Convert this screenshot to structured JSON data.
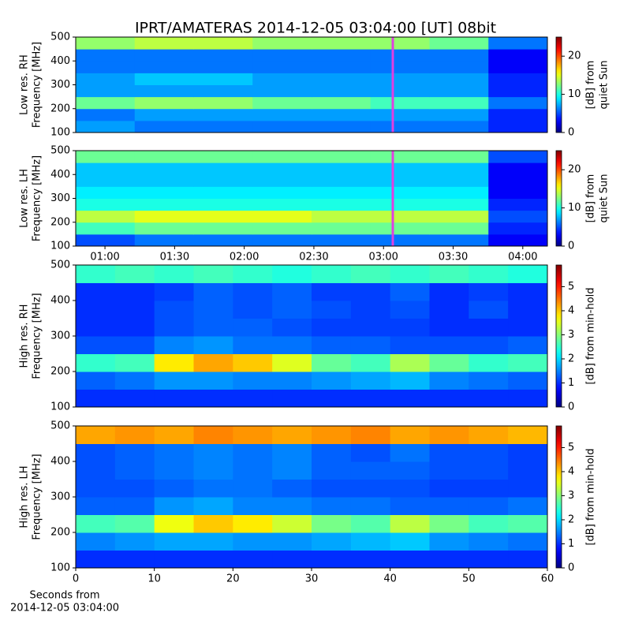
{
  "title": "IPRT/AMATERAS 2014-12-05 03:04:00 [UT]   08bit",
  "chart_data": [
    {
      "type": "heatmap",
      "ylabel": [
        "Low res. RH",
        "Frequency [MHz]"
      ],
      "colormap": "jet",
      "xlim": [
        47.4,
        250.6
      ],
      "ylim": [
        100,
        500
      ],
      "yticks": [
        100,
        200,
        300,
        400,
        500
      ],
      "vline": 184,
      "vline_color": "#e040e0",
      "clim": [
        0,
        25
      ],
      "cticks": [
        0,
        10,
        20
      ],
      "colorbar_label": [
        "[dB] from",
        "quiet Sun"
      ],
      "z": [
        [
          7,
          6,
          6,
          6,
          6,
          6,
          6,
          4
        ],
        [
          6,
          7,
          7,
          7,
          7,
          7,
          7,
          4
        ],
        [
          12,
          13,
          13,
          12,
          12,
          11,
          11,
          6
        ],
        [
          7,
          7,
          7,
          7,
          7,
          7,
          7,
          4
        ],
        [
          7,
          8,
          8,
          7,
          7,
          7,
          7,
          4
        ],
        [
          6,
          6,
          6,
          6,
          6,
          6,
          6,
          3
        ],
        [
          6,
          6,
          6,
          6,
          6,
          6,
          6,
          3
        ],
        [
          13,
          14,
          14,
          13,
          13,
          13,
          12,
          6
        ]
      ]
    },
    {
      "type": "heatmap",
      "ylabel": [
        "Low res. LH",
        "Frequency [MHz]"
      ],
      "colormap": "jet",
      "xlim": [
        47.4,
        250.6
      ],
      "ylim": [
        100,
        500
      ],
      "yticks": [
        100,
        200,
        300,
        400,
        500
      ],
      "xticks": [
        {
          "value": 60,
          "label": "01:00"
        },
        {
          "value": 90,
          "label": "01:30"
        },
        {
          "value": 120,
          "label": "02:00"
        },
        {
          "value": 150,
          "label": "02:30"
        },
        {
          "value": 180,
          "label": "03:00"
        },
        {
          "value": 210,
          "label": "03:30"
        },
        {
          "value": 240,
          "label": "04:00"
        }
      ],
      "vline": 184,
      "vline_color": "#e040e0",
      "clim": [
        0,
        25
      ],
      "cticks": [
        0,
        10,
        20
      ],
      "colorbar_label": [
        "[dB] from",
        "quiet Sun"
      ],
      "z": [
        [
          5,
          6,
          6,
          6,
          6,
          6,
          6,
          3
        ],
        [
          11,
          12,
          12,
          12,
          12,
          12,
          12,
          4
        ],
        [
          14,
          15,
          15,
          15,
          14,
          14,
          14,
          5
        ],
        [
          10,
          10,
          10,
          10,
          10,
          10,
          10,
          4
        ],
        [
          9,
          9,
          9,
          9,
          9,
          9,
          9,
          3
        ],
        [
          8,
          8,
          8,
          8,
          8,
          8,
          8,
          3
        ],
        [
          8,
          8,
          8,
          8,
          8,
          8,
          8,
          3
        ],
        [
          12,
          12,
          12,
          12,
          12,
          12,
          12,
          5
        ]
      ]
    },
    {
      "type": "heatmap",
      "ylabel": [
        "High res. RH",
        "Frequency [MHz]"
      ],
      "colormap": "jet",
      "xlim": [
        0,
        60
      ],
      "ylim": [
        100,
        500
      ],
      "yticks": [
        100,
        200,
        300,
        400,
        500
      ],
      "clim": [
        0,
        5.9
      ],
      "cticks": [
        0,
        1,
        2,
        3,
        4,
        5
      ],
      "colorbar_label": [
        "[dB] from min-hold"
      ],
      "z": [
        [
          1,
          1,
          1,
          1,
          1,
          1,
          1,
          1,
          1,
          1,
          1,
          1
        ],
        [
          1.3,
          1.4,
          1.6,
          1.6,
          1.5,
          1.5,
          1.6,
          1.7,
          1.8,
          1.5,
          1.4,
          1.3
        ],
        [
          2.5,
          2.6,
          3.8,
          4.2,
          4.0,
          3.5,
          2.8,
          2.6,
          3.2,
          2.8,
          2.5,
          2.6
        ],
        [
          1.2,
          1.2,
          1.5,
          1.6,
          1.4,
          1.4,
          1.3,
          1.3,
          1.2,
          1.2,
          1.2,
          1.3
        ],
        [
          1,
          1,
          1.2,
          1.3,
          1.3,
          1.2,
          1.1,
          1.1,
          1.1,
          1,
          1,
          1
        ],
        [
          1,
          1,
          1.2,
          1.3,
          1.2,
          1.3,
          1.2,
          1.1,
          1.2,
          1,
          1.2,
          1
        ],
        [
          1,
          1,
          1.1,
          1.3,
          1.2,
          1.3,
          1.1,
          1.1,
          1.3,
          1,
          1.1,
          1
        ],
        [
          2.5,
          2.6,
          2.5,
          2.6,
          2.5,
          2.4,
          2.5,
          2.6,
          2.5,
          2.6,
          2.5,
          2.4
        ]
      ]
    },
    {
      "type": "heatmap",
      "ylabel": [
        "High res. LH",
        "Frequency [MHz]"
      ],
      "colormap": "jet",
      "xlim": [
        0,
        60
      ],
      "ylim": [
        100,
        500
      ],
      "yticks": [
        100,
        200,
        300,
        400,
        500
      ],
      "xticks": [
        0,
        10,
        20,
        30,
        40,
        50,
        60
      ],
      "xlabel": [
        "Seconds from",
        "2014-12-05 03:04:00"
      ],
      "clim": [
        0,
        5.9
      ],
      "cticks": [
        0,
        1,
        2,
        3,
        4,
        5
      ],
      "colorbar_label": [
        "[dB] from min-hold"
      ],
      "z": [
        [
          1,
          1,
          1,
          1,
          1,
          1,
          1,
          1,
          1,
          1,
          1,
          1
        ],
        [
          1.5,
          1.6,
          1.7,
          1.7,
          1.6,
          1.6,
          1.7,
          1.8,
          1.9,
          1.6,
          1.5,
          1.4
        ],
        [
          2.6,
          2.7,
          3.6,
          4.0,
          3.8,
          3.4,
          2.9,
          2.7,
          3.3,
          2.9,
          2.6,
          2.7
        ],
        [
          1.3,
          1.3,
          1.6,
          1.7,
          1.5,
          1.5,
          1.4,
          1.4,
          1.3,
          1.3,
          1.3,
          1.4
        ],
        [
          1.2,
          1.2,
          1.3,
          1.4,
          1.4,
          1.3,
          1.2,
          1.2,
          1.2,
          1.1,
          1.1,
          1.1
        ],
        [
          1.2,
          1.3,
          1.4,
          1.5,
          1.4,
          1.5,
          1.3,
          1.3,
          1.3,
          1.2,
          1.2,
          1.1
        ],
        [
          1.2,
          1.3,
          1.4,
          1.5,
          1.4,
          1.5,
          1.3,
          1.2,
          1.4,
          1.2,
          1.2,
          1.1
        ],
        [
          4.2,
          4.3,
          4.2,
          4.4,
          4.3,
          4.2,
          4.3,
          4.4,
          4.2,
          4.3,
          4.2,
          4.1
        ]
      ]
    }
  ]
}
